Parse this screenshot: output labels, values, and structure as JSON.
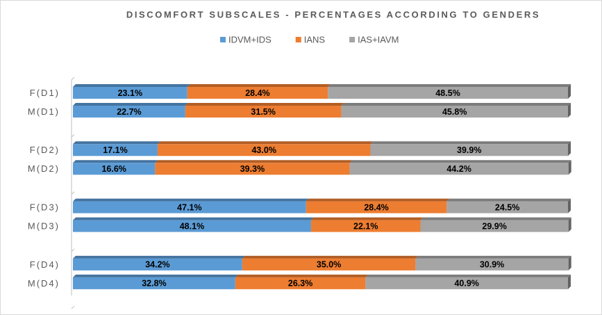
{
  "chart_data": {
    "type": "stacked-bar-horizontal",
    "title": "DISCOMFORT SUBSCALES - PERCENTAGES ACCORDING TO GENDERS",
    "categories": [
      "F(D1)",
      "M(D1)",
      "F(D2)",
      "M(D2)",
      "F(D3)",
      "M(D3)",
      "F(D4)",
      "M(D4)"
    ],
    "xlim": [
      0,
      100
    ],
    "legend": "top",
    "series": [
      {
        "name": "IDVM+IDS",
        "color": "#5b9bd5",
        "values": [
          23.1,
          22.7,
          17.1,
          16.6,
          47.1,
          48.1,
          34.2,
          32.8
        ],
        "value_labels": [
          "23.1%",
          "22.7%",
          "17.1%",
          "16.6%",
          "47.1%",
          "48.1%",
          "34.2%",
          "32.8%"
        ]
      },
      {
        "name": "IANS",
        "color": "#ed7d31",
        "values": [
          28.4,
          31.5,
          43.0,
          39.3,
          28.4,
          22.1,
          35.0,
          26.3
        ],
        "value_labels": [
          "28.4%",
          "31.5%",
          "43.0%",
          "39.3%",
          "28.4%",
          "22.1%",
          "35.0%",
          "26.3%"
        ]
      },
      {
        "name": "IAS+IAVM",
        "color": "#a5a5a5",
        "values": [
          48.5,
          45.8,
          39.9,
          44.2,
          24.5,
          29.9,
          30.9,
          40.9
        ],
        "value_labels": [
          "48.5%",
          "45.8%",
          "39.9%",
          "44.2%",
          "24.5%",
          "29.9%",
          "30.9%",
          "40.9%"
        ]
      }
    ]
  }
}
